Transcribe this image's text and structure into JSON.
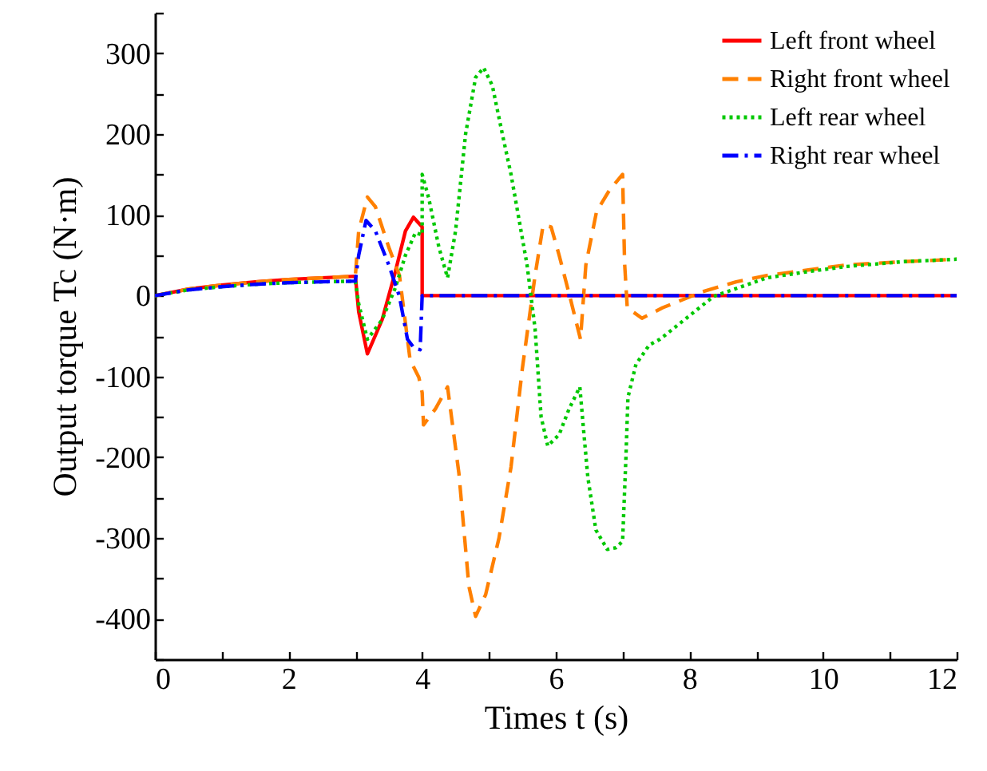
{
  "chart_data": {
    "type": "line",
    "xlabel": "Times t (s)",
    "ylabel": "Output torque Tc (N·m)",
    "xlim": [
      0,
      12
    ],
    "ylim": [
      -450,
      350
    ],
    "xticks": [
      0,
      {
        "value": 1,
        "label": null
      },
      2,
      {
        "value": 3,
        "label": null
      },
      4,
      {
        "value": 5,
        "label": null
      },
      6,
      {
        "value": 7,
        "label": null
      },
      8,
      {
        "value": 9,
        "label": null
      },
      10,
      {
        "value": 11,
        "label": null
      },
      12
    ],
    "yticks": [
      {
        "value": -450,
        "label": null
      },
      -400,
      {
        "value": -350,
        "label": null
      },
      -300,
      {
        "value": -250,
        "label": null
      },
      -200,
      {
        "value": -150,
        "label": null
      },
      -100,
      {
        "value": -50,
        "label": null
      },
      0,
      {
        "value": 50,
        "label": null
      },
      100,
      {
        "value": 150,
        "label": null
      },
      200,
      {
        "value": 250,
        "label": null
      },
      300,
      {
        "value": 350,
        "label": null
      }
    ],
    "grid": false,
    "legend": "top right",
    "marker": "none",
    "series": [
      {
        "name": "Left front wheel",
        "color": "#ff0000",
        "line_style": "solid",
        "x": [
          0,
          0.5,
          1,
          1.5,
          2,
          2.5,
          3,
          3.05,
          3.18,
          3.4,
          3.6,
          3.75,
          3.87,
          4.0,
          4.0,
          5,
          6,
          7,
          8,
          9,
          10,
          11,
          12
        ],
        "values": [
          0,
          8,
          13,
          17,
          20,
          22,
          24,
          -20,
          -72,
          -30,
          30,
          80,
          97,
          85,
          0,
          0,
          0,
          0,
          0,
          0,
          0,
          0,
          0
        ]
      },
      {
        "name": "Right front wheel",
        "color": "#ff8000",
        "line_style": "dashed",
        "x": [
          0,
          0.5,
          1,
          1.5,
          2,
          2.5,
          3,
          3.05,
          3.18,
          3.3,
          3.5,
          3.66,
          3.82,
          3.95,
          4.0,
          4.02,
          4.2,
          4.38,
          4.55,
          4.7,
          4.8,
          4.95,
          5.15,
          5.33,
          5.5,
          5.69,
          5.81,
          5.93,
          6.05,
          6.21,
          6.37,
          6.45,
          6.61,
          6.8,
          7.0,
          7.03,
          7.07,
          7.29,
          7.6,
          8.2,
          8.7,
          9.16,
          9.8,
          10.35,
          11.2,
          12
        ],
        "values": [
          0,
          8,
          13,
          17,
          20,
          22,
          24,
          80,
          122,
          110,
          60,
          25,
          -80,
          -101,
          -120,
          -160,
          -140,
          -113,
          -220,
          -360,
          -397,
          -370,
          -300,
          -212,
          -90,
          25,
          87,
          85,
          50,
          -1,
          -54,
          38,
          104,
          130,
          150,
          40,
          -15,
          -28,
          -15,
          5,
          17,
          25,
          32,
          38,
          42,
          45
        ]
      },
      {
        "name": "Left rear wheel",
        "color": "#00c800",
        "line_style": "dotted",
        "x": [
          0,
          0.5,
          1,
          1.5,
          2,
          2.5,
          3,
          3.05,
          3.18,
          3.4,
          3.6,
          3.75,
          3.9,
          4.0,
          4.0,
          4.1,
          4.25,
          4.38,
          4.5,
          4.65,
          4.8,
          4.92,
          5.05,
          5.2,
          5.33,
          5.57,
          5.69,
          5.78,
          5.88,
          6.05,
          6.2,
          6.36,
          6.42,
          6.48,
          6.6,
          6.77,
          6.9,
          7.0,
          7.05,
          7.08,
          7.2,
          7.4,
          7.56,
          8.0,
          8.36,
          9.16,
          9.8,
          10.35,
          11.2,
          12
        ],
        "values": [
          0,
          7,
          11,
          14,
          16,
          17,
          18,
          -10,
          -54,
          -30,
          10,
          50,
          78,
          75,
          150,
          120,
          60,
          22,
          80,
          200,
          270,
          282,
          260,
          200,
          150,
          38,
          -41,
          -150,
          -186,
          -172,
          -140,
          -113,
          -170,
          -225,
          -290,
          -314,
          -312,
          -304,
          -200,
          -126,
          -85,
          -61,
          -54,
          -25,
          -1,
          22,
          30,
          36,
          42,
          45
        ]
      },
      {
        "name": "Right rear wheel",
        "color": "#0000ff",
        "line_style": "dashdot",
        "x": [
          0,
          0.5,
          1,
          1.5,
          2,
          2.5,
          3,
          3.05,
          3.16,
          3.3,
          3.5,
          3.66,
          3.78,
          3.88,
          3.97,
          4.0,
          5,
          6,
          7,
          8,
          9,
          10,
          11,
          12
        ],
        "values": [
          0,
          7,
          11,
          14,
          16,
          17,
          18,
          50,
          93,
          80,
          38,
          -1,
          -54,
          -65,
          -67,
          0,
          0,
          0,
          0,
          0,
          0,
          0,
          0,
          0
        ]
      }
    ]
  }
}
